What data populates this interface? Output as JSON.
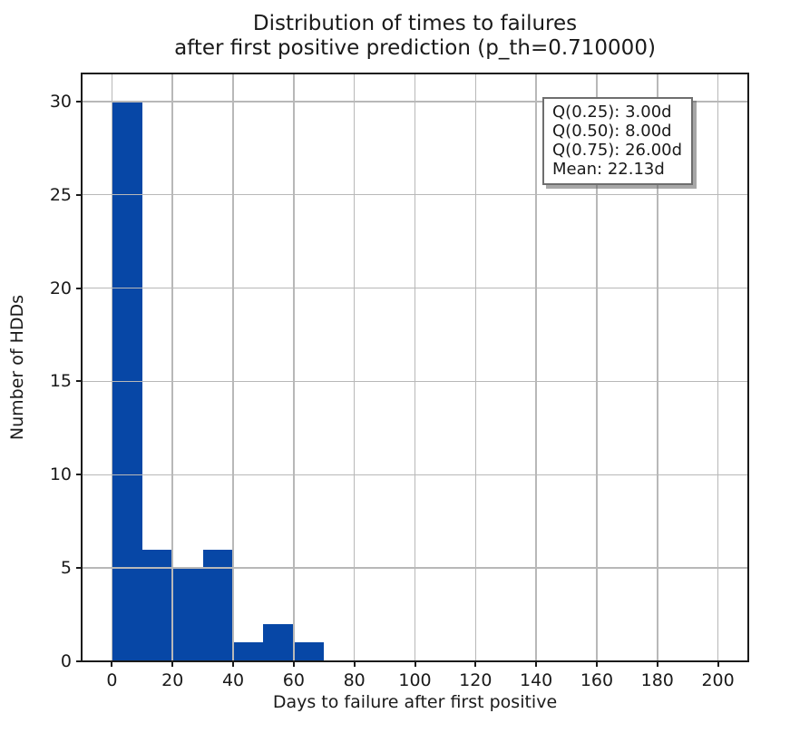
{
  "figure": {
    "title_line_1": "Distribution of times to failures",
    "title_line_2": "after first positive prediction (p_th=0.710000)",
    "xlabel": "Days to failure after first positive",
    "ylabel": "Number of HDDs",
    "stats_box": {
      "line_1": "Q(0.25): 3.00d",
      "line_2": "Q(0.50): 8.00d",
      "line_3": "Q(0.75): 26.00d",
      "line_4": "Mean: 22.13d"
    },
    "colors": {
      "bar": "#0747a6",
      "grid": "#b8b8b8",
      "spine": "#1a1a1a",
      "text": "#1a1a1a",
      "background": "#ffffff"
    }
  },
  "chart_data": {
    "type": "bar",
    "subtype": "histogram",
    "title": "Distribution of times to failures\nafter first positive prediction (p_th=0.710000)",
    "xlabel": "Days to failure after first positive",
    "ylabel": "Number of HDDs",
    "bin_edges": [
      0,
      10,
      20,
      30,
      40,
      50,
      60,
      70,
      80,
      90,
      100,
      110,
      120,
      130,
      140,
      150,
      160,
      170,
      180,
      190,
      200
    ],
    "counts": [
      30,
      6,
      5,
      6,
      1,
      2,
      1,
      0,
      0,
      0,
      0,
      0,
      0,
      0,
      0,
      0,
      0,
      0,
      0,
      0
    ],
    "xlim": [
      -10,
      210
    ],
    "ylim": [
      0,
      31.5
    ],
    "xticks": [
      0,
      20,
      40,
      60,
      80,
      100,
      120,
      140,
      160,
      180,
      200
    ],
    "yticks": [
      0,
      5,
      10,
      15,
      20,
      25,
      30
    ],
    "grid": true,
    "grid_above_bars": true,
    "legend_position": "upper right",
    "annotations": [
      "Q(0.25): 3.00d",
      "Q(0.50): 8.00d",
      "Q(0.75): 26.00d",
      "Mean: 22.13d"
    ]
  }
}
